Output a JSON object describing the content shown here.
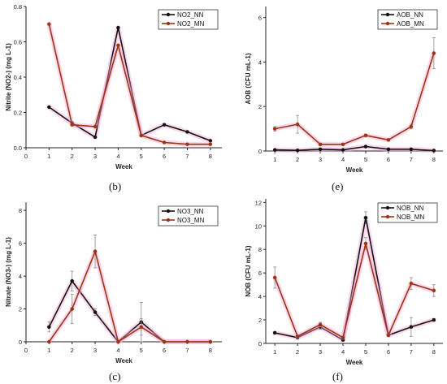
{
  "colors": {
    "nn": "#111111",
    "mn": "#9a3412",
    "band": "#f9a8d4"
  },
  "chart_data": [
    {
      "type": "line",
      "panel_label": "(b)",
      "xlabel": "Week",
      "ylabel": "Nitrite (NO2-) (mg L-1)",
      "xlim": [
        0,
        8.5
      ],
      "ylim": [
        0,
        0.8
      ],
      "x_ticks": [
        "0",
        "1",
        "2",
        "3",
        "4",
        "5",
        "6",
        "7",
        "8"
      ],
      "y_ticks": [
        "0.0",
        "0.2",
        "0.4",
        "0.6",
        "0.8"
      ],
      "y_tick_values": [
        0,
        0.2,
        0.4,
        0.6,
        0.8
      ],
      "legend_position": "top-right",
      "x": [
        1,
        2,
        3,
        4,
        5,
        6,
        7,
        8
      ],
      "series": [
        {
          "name": "NO2_NN",
          "color": "#111111",
          "values": [
            0.23,
            0.14,
            0.06,
            0.68,
            0.07,
            0.13,
            0.09,
            0.04
          ],
          "error": [
            0,
            0,
            0,
            0,
            0,
            0,
            0,
            0
          ]
        },
        {
          "name": "NO2_MN",
          "color": "#9a3412",
          "values": [
            0.7,
            0.13,
            0.12,
            0.58,
            0.07,
            0.03,
            0.02,
            0.02
          ],
          "error": [
            0,
            0,
            0,
            0,
            0,
            0,
            0,
            0
          ]
        }
      ]
    },
    {
      "type": "line",
      "panel_label": "(e)",
      "xlabel": "Week",
      "ylabel": "AOB (CFU mL-1)",
      "xlim": [
        0.6,
        8.4
      ],
      "ylim": [
        0,
        6.5
      ],
      "x_ticks": [
        "1",
        "2",
        "3",
        "4",
        "5",
        "6",
        "7",
        "8"
      ],
      "x_tick_values": [
        1,
        2,
        3,
        4,
        5,
        6,
        7,
        8
      ],
      "y_ticks": [
        "0",
        "2",
        "4",
        "6"
      ],
      "y_tick_values": [
        0,
        2,
        4,
        6
      ],
      "legend_position": "top-right",
      "x": [
        1,
        2,
        3,
        4,
        5,
        6,
        7,
        8
      ],
      "series": [
        {
          "name": "AOB_NN",
          "color": "#111111",
          "values": [
            0.05,
            0.03,
            0.08,
            0.05,
            0.2,
            0.08,
            0.08,
            0.02
          ],
          "error": [
            0.02,
            0.02,
            0.03,
            0.02,
            0.05,
            0.03,
            0.03,
            0.01
          ]
        },
        {
          "name": "AOB_MN",
          "color": "#9a3412",
          "values": [
            1.0,
            1.2,
            0.3,
            0.3,
            0.7,
            0.5,
            1.1,
            4.4
          ],
          "error": [
            0.1,
            0.4,
            0.05,
            0.05,
            0.05,
            0.05,
            0.1,
            0.7
          ]
        }
      ]
    },
    {
      "type": "line",
      "panel_label": "(c)",
      "xlabel": "Week",
      "ylabel": "Nitrate (NO3-) (mg L-1)",
      "xlim": [
        0,
        8.5
      ],
      "ylim": [
        0,
        8.5
      ],
      "x_ticks": [
        "0",
        "1",
        "2",
        "3",
        "4",
        "5",
        "6",
        "7",
        "8"
      ],
      "y_ticks": [
        "0",
        "2",
        "4",
        "6",
        "8"
      ],
      "y_tick_values": [
        0,
        2,
        4,
        6,
        8
      ],
      "legend_position": "top-right",
      "x": [
        1,
        2,
        3,
        4,
        5,
        6,
        7,
        8
      ],
      "series": [
        {
          "name": "NO3_NN",
          "color": "#111111",
          "values": [
            0.9,
            3.7,
            1.8,
            0.0,
            1.2,
            0.0,
            0.0,
            0.0
          ],
          "error": [
            0.3,
            0.6,
            0.2,
            0.0,
            1.2,
            0.0,
            0.0,
            0.0
          ]
        },
        {
          "name": "NO3_MN",
          "color": "#9a3412",
          "values": [
            0.0,
            2.0,
            5.5,
            0.0,
            0.9,
            0.0,
            0.0,
            0.0
          ],
          "error": [
            0.0,
            0.9,
            1.0,
            0.0,
            0.5,
            0.0,
            0.0,
            0.0
          ]
        }
      ]
    },
    {
      "type": "line",
      "panel_label": "(f)",
      "xlabel": "Week",
      "ylabel": "NOB (CFU mL-1)",
      "xlim": [
        0.6,
        8.4
      ],
      "ylim": [
        0,
        12.3
      ],
      "x_ticks": [
        "1",
        "2",
        "3",
        "4",
        "5",
        "6",
        "7",
        "8"
      ],
      "x_tick_values": [
        1,
        2,
        3,
        4,
        5,
        6,
        7,
        8
      ],
      "y_ticks": [
        "0",
        "2",
        "4",
        "6",
        "8",
        "10",
        "12"
      ],
      "y_tick_values": [
        0,
        2,
        4,
        6,
        8,
        10,
        12
      ],
      "legend_position": "top-right",
      "x": [
        1,
        2,
        3,
        4,
        5,
        6,
        7,
        8
      ],
      "series": [
        {
          "name": "NOB_NN",
          "color": "#111111",
          "values": [
            0.9,
            0.5,
            1.4,
            0.3,
            10.7,
            0.7,
            1.4,
            2.0
          ],
          "error": [
            0.1,
            0.1,
            0.2,
            0.1,
            0.5,
            0.1,
            0.8,
            0.1
          ]
        },
        {
          "name": "NOB_MN",
          "color": "#9a3412",
          "values": [
            5.6,
            0.6,
            1.6,
            0.5,
            8.5,
            0.7,
            5.1,
            4.5
          ],
          "error": [
            0.9,
            0.1,
            0.2,
            0.1,
            0.5,
            0.1,
            0.5,
            0.5
          ]
        }
      ]
    }
  ]
}
